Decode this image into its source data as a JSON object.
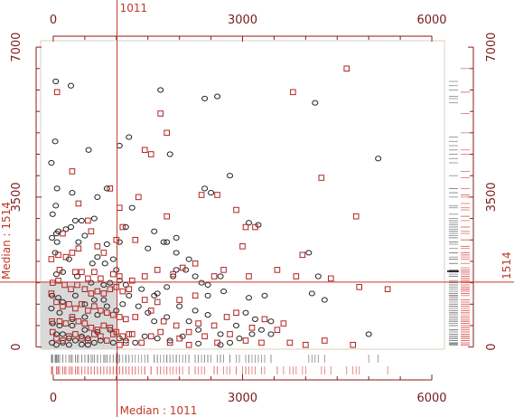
{
  "colors": {
    "accent": "#c0392b",
    "axis": "#8b1a1a",
    "frame": "#d8d0c0",
    "group_a": "#222222",
    "group_b": "#b22222",
    "median_region": "#d9d9d9",
    "rug_a": "#888888",
    "rug_b": "#e07070"
  },
  "chart_data": {
    "type": "scatter",
    "xlim": [
      -200,
      6200
    ],
    "ylim": [
      -50,
      7150
    ],
    "x_ticks": [
      0,
      3000,
      6000
    ],
    "y_ticks": [
      0,
      3500,
      7000
    ],
    "x_tick_labels": [
      "0",
      "3000",
      "6000"
    ],
    "y_tick_labels": [
      "0",
      "3500",
      "7000"
    ],
    "median_x": 1011,
    "median_y": 1514,
    "median_x_label": "Median : 1011",
    "median_y_label": "Median : 1514",
    "median_x_top_label": "1011",
    "median_y_right_label": "1514",
    "marginal_rugs": true,
    "series": [
      {
        "marker": "circle",
        "color": "#222222",
        "points": [
          [
            40,
            6200
          ],
          [
            280,
            6100
          ],
          [
            30,
            4800
          ],
          [
            560,
            4600
          ],
          [
            1050,
            4700
          ],
          [
            1200,
            4900
          ],
          [
            -30,
            4300
          ],
          [
            60,
            3700
          ],
          [
            300,
            3600
          ],
          [
            700,
            3500
          ],
          [
            850,
            3700
          ],
          [
            -10,
            3100
          ],
          [
            40,
            3300
          ],
          [
            50,
            2650
          ],
          [
            80,
            2700
          ],
          [
            200,
            2750
          ],
          [
            280,
            2800
          ],
          [
            350,
            2950
          ],
          [
            450,
            2950
          ],
          [
            650,
            3000
          ],
          [
            500,
            2600
          ],
          [
            400,
            2450
          ],
          [
            850,
            2400
          ],
          [
            -20,
            2550
          ],
          [
            60,
            2450
          ],
          [
            30,
            2200
          ],
          [
            250,
            2050
          ],
          [
            700,
            2100
          ],
          [
            620,
            1950
          ],
          [
            820,
            1950
          ],
          [
            950,
            2050
          ],
          [
            1000,
            1800
          ],
          [
            150,
            1750
          ],
          [
            50,
            1700
          ],
          [
            380,
            1650
          ],
          [
            600,
            1500
          ],
          [
            800,
            1450
          ],
          [
            900,
            1500
          ],
          [
            1050,
            1550
          ],
          [
            1150,
            1450
          ],
          [
            -20,
            1200
          ],
          [
            80,
            1150
          ],
          [
            150,
            1050
          ],
          [
            350,
            1200
          ],
          [
            500,
            1000
          ],
          [
            650,
            1100
          ],
          [
            800,
            1100
          ],
          [
            850,
            950
          ],
          [
            1000,
            850
          ],
          [
            -30,
            900
          ],
          [
            100,
            800
          ],
          [
            300,
            650
          ],
          [
            500,
            700
          ],
          [
            700,
            750
          ],
          [
            -10,
            550
          ],
          [
            100,
            500
          ],
          [
            300,
            500
          ],
          [
            500,
            400
          ],
          [
            700,
            350
          ],
          [
            900,
            400
          ],
          [
            50,
            300
          ],
          [
            150,
            300
          ],
          [
            250,
            200
          ],
          [
            350,
            150
          ],
          [
            450,
            250
          ],
          [
            550,
            200
          ],
          [
            650,
            100
          ],
          [
            -20,
            100
          ],
          [
            50,
            50
          ],
          [
            150,
            100
          ],
          [
            250,
            50
          ],
          [
            450,
            60
          ],
          [
            550,
            50
          ],
          [
            750,
            150
          ],
          [
            950,
            100
          ],
          [
            1050,
            200
          ],
          [
            1150,
            150
          ],
          [
            1300,
            100
          ],
          [
            1450,
            250
          ],
          [
            1650,
            200
          ],
          [
            1850,
            150
          ],
          [
            2050,
            250
          ],
          [
            2300,
            80
          ],
          [
            2650,
            50
          ],
          [
            2800,
            100
          ],
          [
            2950,
            200
          ],
          [
            3150,
            300
          ],
          [
            3450,
            300
          ],
          [
            3450,
            600
          ],
          [
            3050,
            800
          ],
          [
            3100,
            1150
          ],
          [
            3350,
            1200
          ],
          [
            4100,
            1250
          ],
          [
            4300,
            1100
          ],
          [
            4200,
            1650
          ],
          [
            4050,
            2200
          ],
          [
            5000,
            300
          ],
          [
            5150,
            4400
          ],
          [
            1700,
            6000
          ],
          [
            2400,
            5800
          ],
          [
            2600,
            5850
          ],
          [
            4150,
            5700
          ],
          [
            1850,
            4500
          ],
          [
            2400,
            3700
          ],
          [
            2800,
            4000
          ],
          [
            3250,
            2850
          ],
          [
            3100,
            2900
          ],
          [
            2500,
            3600
          ],
          [
            1800,
            2450
          ],
          [
            1950,
            2200
          ],
          [
            2100,
            1800
          ],
          [
            1950,
            1800
          ],
          [
            2150,
            2050
          ],
          [
            2250,
            1650
          ],
          [
            2650,
            1650
          ],
          [
            2350,
            1500
          ],
          [
            2450,
            1200
          ],
          [
            1800,
            1400
          ],
          [
            1600,
            1200
          ],
          [
            1400,
            1350
          ],
          [
            1200,
            1200
          ],
          [
            1100,
            1000
          ],
          [
            1350,
            950
          ],
          [
            1500,
            800
          ],
          [
            1600,
            600
          ],
          [
            1800,
            700
          ],
          [
            2000,
            950
          ],
          [
            2250,
            850
          ],
          [
            2450,
            750
          ],
          [
            2150,
            600
          ],
          [
            2300,
            400
          ],
          [
            2650,
            300
          ],
          [
            2900,
            500
          ],
          [
            3200,
            650
          ],
          [
            3300,
            400
          ],
          [
            2700,
            1300
          ],
          [
            2450,
            1450
          ],
          [
            1900,
            1650
          ],
          [
            1650,
            1250
          ],
          [
            1250,
            3250
          ],
          [
            1600,
            2700
          ],
          [
            1500,
            2300
          ],
          [
            1750,
            2450
          ],
          [
            1050,
            2450
          ],
          [
            1150,
            2800
          ],
          [
            1950,
            2550
          ]
        ]
      },
      {
        "marker": "square",
        "color": "#b22222",
        "points": [
          [
            60,
            5950
          ],
          [
            300,
            4100
          ],
          [
            550,
            2950
          ],
          [
            400,
            3350
          ],
          [
            900,
            3700
          ],
          [
            1350,
            3500
          ],
          [
            1050,
            3250
          ],
          [
            1100,
            2800
          ],
          [
            1300,
            2500
          ],
          [
            1000,
            2500
          ],
          [
            600,
            2700
          ],
          [
            400,
            2300
          ],
          [
            300,
            2200
          ],
          [
            700,
            2350
          ],
          [
            800,
            2200
          ],
          [
            150,
            2650
          ],
          [
            -30,
            2050
          ],
          [
            80,
            2150
          ],
          [
            200,
            2100
          ],
          [
            100,
            1800
          ],
          [
            350,
            1750
          ],
          [
            450,
            1750
          ],
          [
            550,
            1600
          ],
          [
            650,
            1750
          ],
          [
            750,
            1600
          ],
          [
            950,
            1700
          ],
          [
            1050,
            1650
          ],
          [
            -10,
            1500
          ],
          [
            80,
            1550
          ],
          [
            180,
            1450
          ],
          [
            280,
            1350
          ],
          [
            380,
            1450
          ],
          [
            500,
            1350
          ],
          [
            600,
            1250
          ],
          [
            700,
            1300
          ],
          [
            800,
            1250
          ],
          [
            900,
            1350
          ],
          [
            1000,
            1400
          ],
          [
            1100,
            1300
          ],
          [
            1200,
            1350
          ],
          [
            -30,
            1250
          ],
          [
            50,
            1050
          ],
          [
            150,
            950
          ],
          [
            250,
            1000
          ],
          [
            350,
            900
          ],
          [
            450,
            1000
          ],
          [
            550,
            850
          ],
          [
            650,
            950
          ],
          [
            750,
            850
          ],
          [
            850,
            800
          ],
          [
            950,
            750
          ],
          [
            1050,
            700
          ],
          [
            1150,
            650
          ],
          [
            -20,
            600
          ],
          [
            100,
            600
          ],
          [
            200,
            550
          ],
          [
            300,
            700
          ],
          [
            400,
            600
          ],
          [
            500,
            550
          ],
          [
            600,
            450
          ],
          [
            700,
            400
          ],
          [
            800,
            500
          ],
          [
            900,
            450
          ],
          [
            1000,
            350
          ],
          [
            1100,
            250
          ],
          [
            1200,
            300
          ],
          [
            -10,
            350
          ],
          [
            50,
            200
          ],
          [
            150,
            150
          ],
          [
            250,
            250
          ],
          [
            350,
            300
          ],
          [
            450,
            200
          ],
          [
            550,
            150
          ],
          [
            650,
            300
          ],
          [
            750,
            250
          ],
          [
            850,
            150
          ],
          [
            950,
            300
          ],
          [
            1050,
            50
          ],
          [
            1150,
            100
          ],
          [
            1250,
            300
          ],
          [
            1400,
            100
          ],
          [
            1550,
            250
          ],
          [
            1700,
            350
          ],
          [
            1850,
            100
          ],
          [
            2000,
            200
          ],
          [
            2150,
            50
          ],
          [
            2400,
            250
          ],
          [
            2600,
            100
          ],
          [
            2800,
            300
          ],
          [
            3050,
            150
          ],
          [
            3300,
            100
          ],
          [
            3550,
            400
          ],
          [
            3750,
            100
          ],
          [
            4000,
            50
          ],
          [
            4300,
            150
          ],
          [
            4750,
            50
          ],
          [
            1800,
            5000
          ],
          [
            1700,
            5450
          ],
          [
            1450,
            4600
          ],
          [
            1550,
            4500
          ],
          [
            1800,
            3050
          ],
          [
            2350,
            3550
          ],
          [
            2600,
            3550
          ],
          [
            2900,
            3200
          ],
          [
            3050,
            2800
          ],
          [
            3000,
            2350
          ],
          [
            3200,
            2800
          ],
          [
            2700,
            1800
          ],
          [
            2550,
            1650
          ],
          [
            3100,
            1650
          ],
          [
            3550,
            1800
          ],
          [
            3950,
            2150
          ],
          [
            3850,
            1650
          ],
          [
            4400,
            1600
          ],
          [
            4850,
            1400
          ],
          [
            4250,
            3950
          ],
          [
            4800,
            3050
          ],
          [
            5300,
            1350
          ],
          [
            3800,
            5950
          ],
          [
            4650,
            6500
          ],
          [
            2250,
            1200
          ],
          [
            2000,
            1100
          ],
          [
            1650,
            1050
          ],
          [
            1450,
            1100
          ],
          [
            1300,
            700
          ],
          [
            1550,
            850
          ],
          [
            1750,
            600
          ],
          [
            1950,
            500
          ],
          [
            2150,
            350
          ],
          [
            2300,
            550
          ],
          [
            2550,
            500
          ],
          [
            2750,
            700
          ],
          [
            2900,
            800
          ],
          [
            3150,
            450
          ],
          [
            3350,
            650
          ],
          [
            3650,
            550
          ],
          [
            1900,
            1700
          ],
          [
            1650,
            1800
          ],
          [
            1450,
            1650
          ],
          [
            1250,
            1550
          ],
          [
            2050,
            1850
          ],
          [
            2250,
            1950
          ]
        ]
      }
    ]
  }
}
